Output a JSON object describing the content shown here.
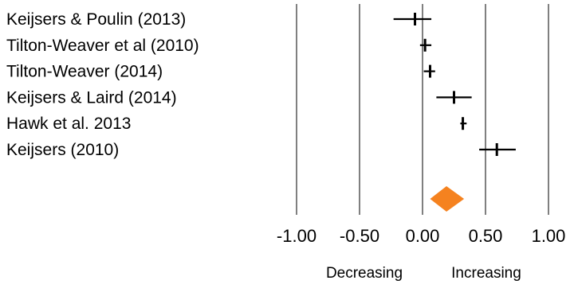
{
  "chart_data": {
    "type": "forest",
    "title": "",
    "xlabel": "",
    "ylabel": "",
    "xlim": [
      -1.0,
      1.0
    ],
    "x_ticks": [
      -1.0,
      -0.5,
      0.0,
      0.5,
      1.0
    ],
    "x_tick_labels": [
      "-1.00",
      "-0.50",
      "0.00",
      "0.50",
      "1.00"
    ],
    "grid": "vertical lines at ticks",
    "direction_labels": {
      "left": "Decreasing",
      "right": "Increasing"
    },
    "studies": [
      {
        "label": "Keijsers & Poulin (2013)",
        "estimate": -0.06,
        "ci": [
          -0.23,
          0.07
        ]
      },
      {
        "label": "Tilton-Weaver et al (2010)",
        "estimate": 0.02,
        "ci": [
          -0.02,
          0.07
        ]
      },
      {
        "label": "Tilton-Weaver (2014)",
        "estimate": 0.06,
        "ci": [
          0.01,
          0.1
        ]
      },
      {
        "label": "Keijsers & Laird (2014)",
        "estimate": 0.25,
        "ci": [
          0.11,
          0.39
        ]
      },
      {
        "label": "Hawk et al. 2013",
        "estimate": 0.32,
        "ci": [
          0.3,
          0.35
        ]
      },
      {
        "label": "Keijsers (2010)",
        "estimate": 0.59,
        "ci": [
          0.45,
          0.74
        ]
      }
    ],
    "summary": {
      "estimate": 0.19,
      "ci": [
        0.06,
        0.33
      ]
    },
    "colors": {
      "summary_diamond": "#f5821f",
      "lines": "#000000"
    }
  }
}
